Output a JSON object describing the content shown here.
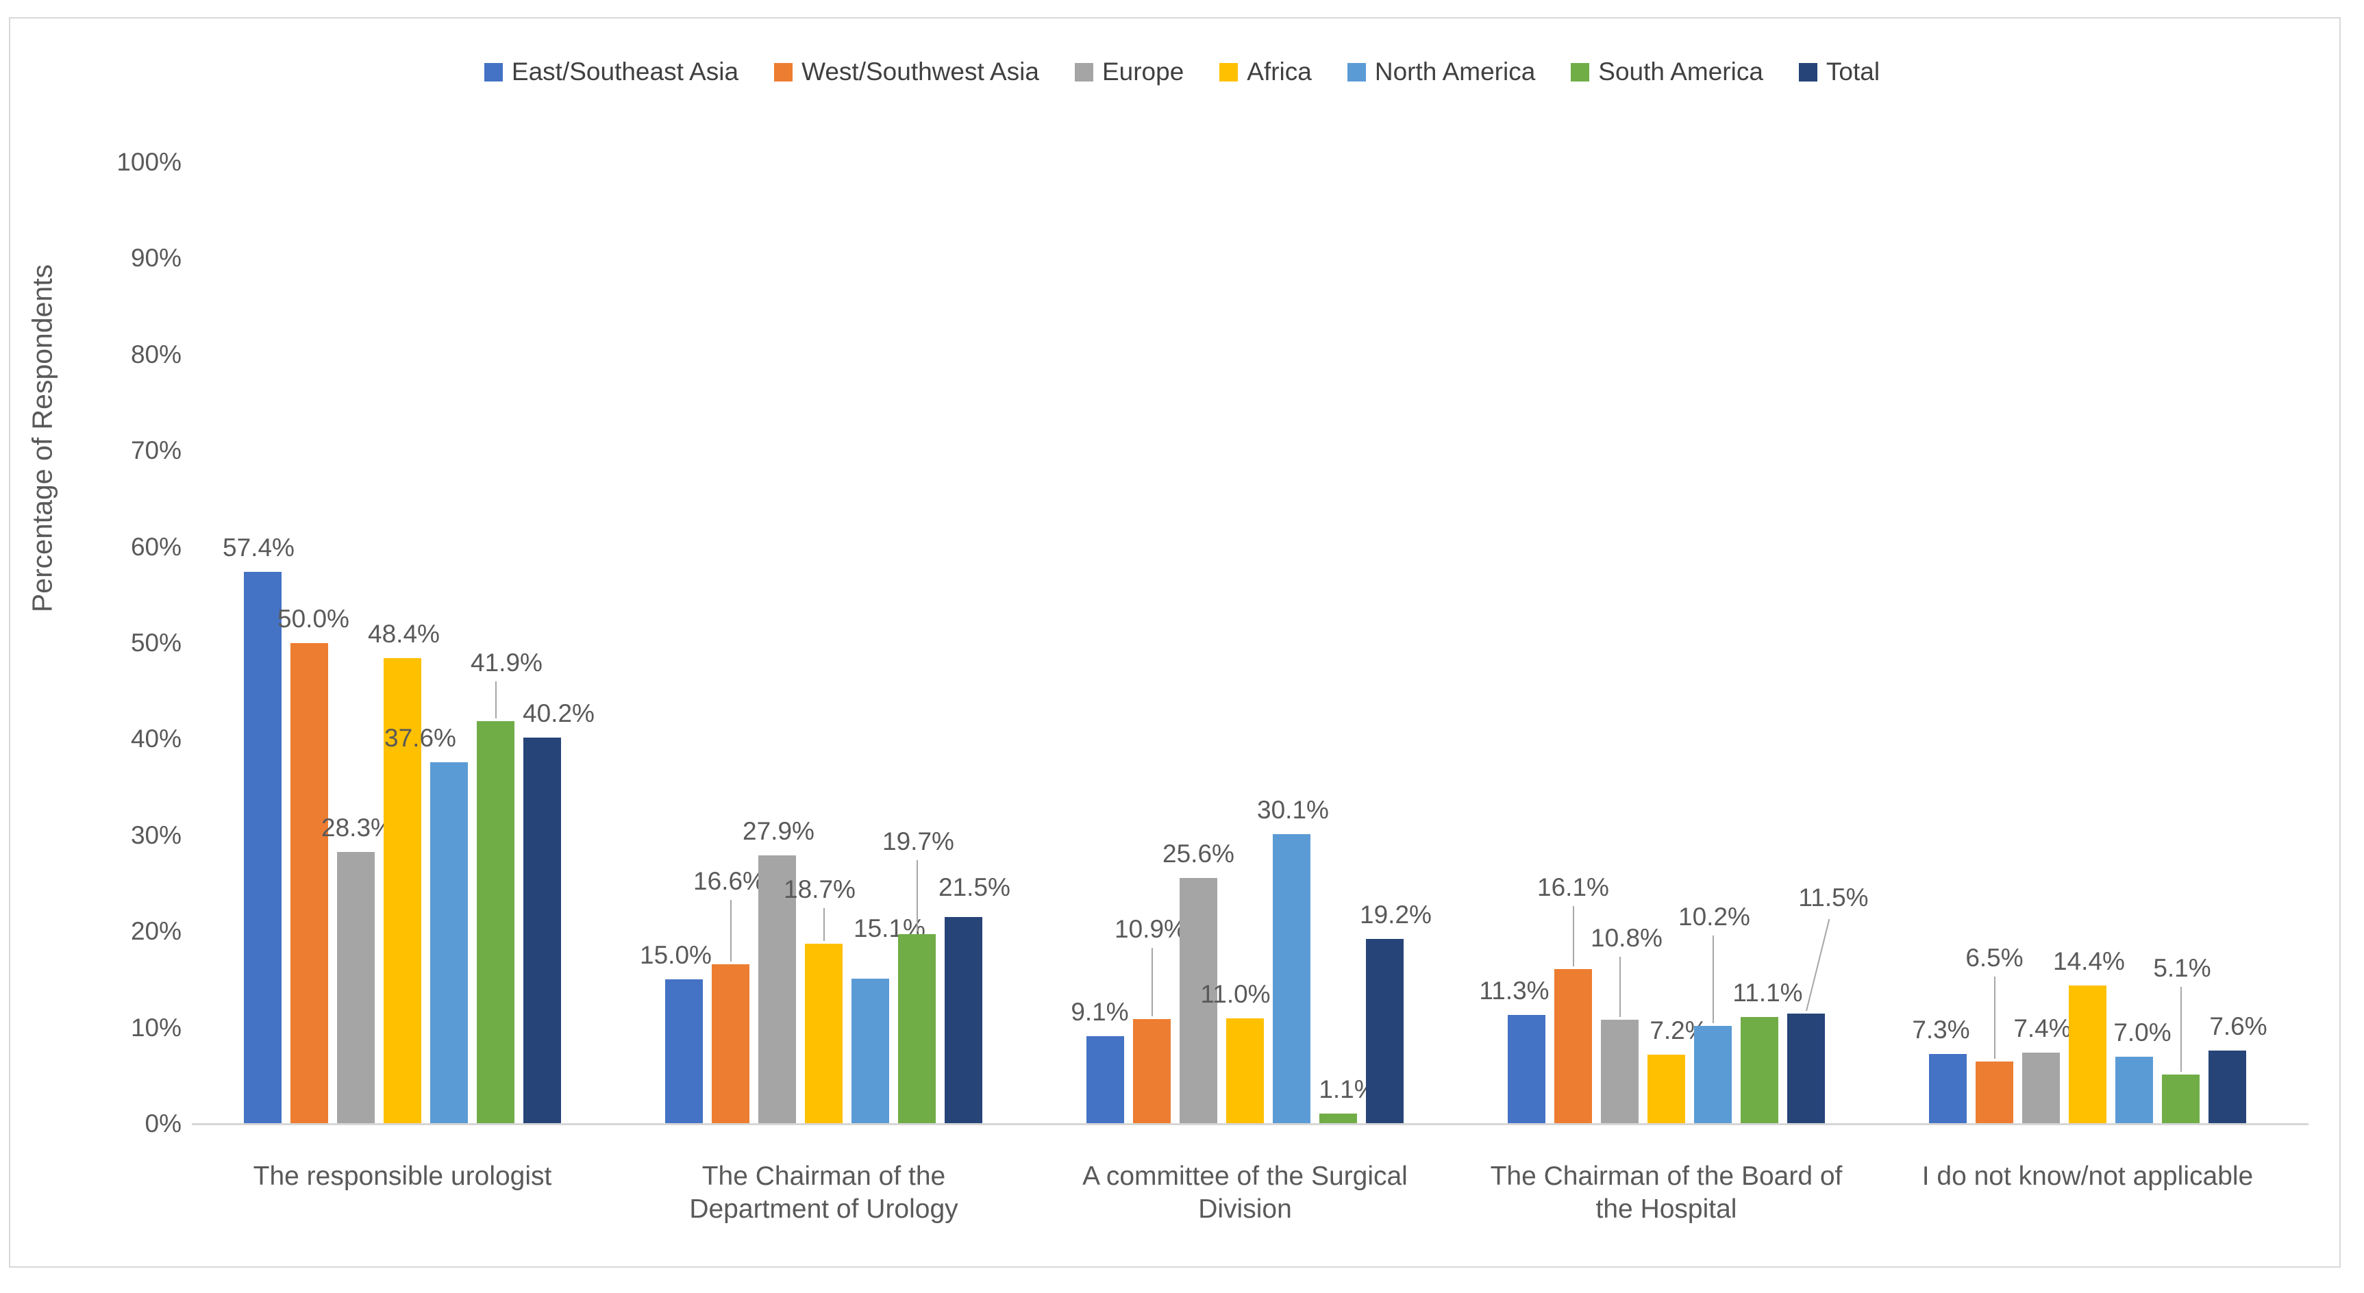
{
  "chart_data": {
    "type": "bar",
    "title": "",
    "ylabel": "Percentage of Respondents",
    "xlabel": "",
    "ylim": [
      0,
      100
    ],
    "ytick_step": 10,
    "ytick_labels": [
      "0%",
      "10%",
      "20%",
      "30%",
      "40%",
      "50%",
      "60%",
      "70%",
      "80%",
      "90%",
      "100%"
    ],
    "grid": "off",
    "legend_position": "top-center",
    "categories": [
      "The responsible urologist",
      "The Chairman of the Department of Urology",
      "A committee of the Surgical Division",
      "The Chairman of the Board of the Hospital",
      "I do not know/not applicable"
    ],
    "series": [
      {
        "name": "East/Southeast Asia",
        "color": "#4472C4",
        "values": [
          57.4,
          15.0,
          9.1,
          11.3,
          7.3
        ],
        "labels": [
          "57.4%",
          "15.0%",
          "9.1%",
          "11.3%",
          "7.3%"
        ]
      },
      {
        "name": "West/Southwest Asia",
        "color": "#ED7D31",
        "values": [
          50.0,
          16.6,
          10.9,
          16.1,
          6.5
        ],
        "labels": [
          "50.0%",
          "16.6%",
          "10.9%",
          "16.1%",
          "6.5%"
        ]
      },
      {
        "name": "Europe",
        "color": "#A5A5A5",
        "values": [
          28.3,
          27.9,
          25.6,
          10.8,
          7.4
        ],
        "labels": [
          "28.3%",
          "27.9%",
          "25.6%",
          "10.8%",
          "7.4%"
        ]
      },
      {
        "name": "Africa",
        "color": "#FFC000",
        "values": [
          48.4,
          18.7,
          11.0,
          7.2,
          14.4
        ],
        "labels": [
          "48.4%",
          "18.7%",
          "11.0%",
          "7.2%",
          "14.4%"
        ]
      },
      {
        "name": "North America",
        "color": "#5B9BD5",
        "values": [
          37.6,
          15.1,
          30.1,
          10.2,
          7.0
        ],
        "labels": [
          "37.6%",
          "15.1%",
          "30.1%",
          "10.2%",
          "7.0%"
        ]
      },
      {
        "name": "South America",
        "color": "#70AD47",
        "values": [
          41.9,
          19.7,
          1.1,
          11.1,
          5.1
        ],
        "labels": [
          "41.9%",
          "19.7%",
          "1.1%",
          "11.1%",
          "5.1%"
        ]
      },
      {
        "name": "Total",
        "color": "#264478",
        "values": [
          40.2,
          21.5,
          19.2,
          11.5,
          7.6
        ],
        "labels": [
          "40.2%",
          "21.5%",
          "19.2%",
          "11.5%",
          "7.6%"
        ]
      }
    ],
    "label_layout": [
      [
        {
          "g": 14,
          "dx": -6
        },
        {
          "g": 14,
          "dx": 6
        },
        {
          "g": 14,
          "dx": 2
        },
        {
          "g": 14,
          "dx": 2
        },
        {
          "g": 14,
          "dx": -42
        },
        {
          "g": 64,
          "dx": 16,
          "l": 1
        },
        {
          "g": 14,
          "dx": 24
        }
      ],
      [
        {
          "g": 14,
          "dx": -12
        },
        {
          "g": 100,
          "dx": -2,
          "l": 1
        },
        {
          "g": 14,
          "dx": 2
        },
        {
          "g": 58,
          "dx": -6,
          "l": 1
        },
        {
          "g": 52,
          "dx": 28
        },
        {
          "g": 114,
          "dx": 2,
          "l": 1
        },
        {
          "g": 22,
          "dx": 16
        }
      ],
      [
        {
          "g": 14,
          "dx": -8
        },
        {
          "g": 110,
          "dx": -2,
          "l": 1
        },
        {
          "g": 14,
          "dx": 0
        },
        {
          "g": 14,
          "dx": -14
        },
        {
          "g": 14,
          "dx": 2
        },
        {
          "g": 14,
          "dx": 14
        },
        {
          "g": 14,
          "dx": 16
        }
      ],
      [
        {
          "g": 14,
          "dx": -18
        },
        {
          "g": 98,
          "dx": 0,
          "l": 1
        },
        {
          "g": 98,
          "dx": 10,
          "l": 1
        },
        {
          "g": 14,
          "dx": 18
        },
        {
          "g": 138,
          "dx": 2,
          "l": 1
        },
        {
          "g": 14,
          "dx": 12
        },
        {
          "g": 148,
          "dx": 40,
          "l": 1,
          "rot": 14
        }
      ],
      [
        {
          "g": 14,
          "dx": -10
        },
        {
          "g": 130,
          "dx": 0,
          "l": 1
        },
        {
          "g": 14,
          "dx": 2
        },
        {
          "g": 14,
          "dx": 2
        },
        {
          "g": 14,
          "dx": 12
        },
        {
          "g": 134,
          "dx": 2,
          "l": 1
        },
        {
          "g": 14,
          "dx": 16
        }
      ]
    ]
  }
}
